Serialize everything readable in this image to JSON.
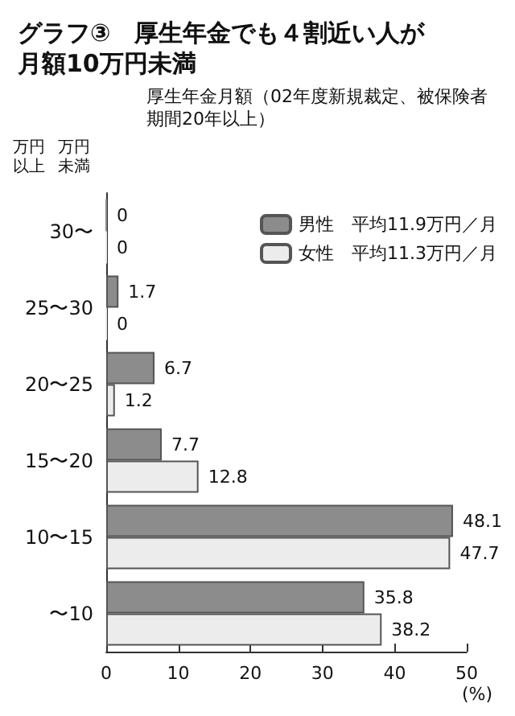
{
  "chart_data": {
    "type": "bar",
    "orientation": "horizontal",
    "title": "グラフ③　厚生年金でも４割近い人が月額10万円未満",
    "subtitle": "厚生年金月額（02年度新規裁定、被保険者期間20年以上）",
    "annotations": [
      "万円以上",
      "万円未満"
    ],
    "xlabel": "(%)",
    "categories": [
      "30〜",
      "25〜30",
      "20〜25",
      "15〜20",
      "10〜15",
      "〜10"
    ],
    "series": [
      {
        "name": "男性　平均11.9万円／月",
        "color": "#8c8c8c",
        "values": [
          0,
          1.7,
          6.7,
          7.7,
          48.1,
          35.8
        ]
      },
      {
        "name": "女性　平均11.3万円／月",
        "color": "#ececec",
        "values": [
          0,
          0,
          1.2,
          12.8,
          47.7,
          38.2
        ]
      }
    ],
    "xlim": [
      0,
      50
    ],
    "xticks": [
      0,
      10,
      20,
      30,
      40,
      50
    ],
    "data_labels": true,
    "grid": false,
    "legend": "top right"
  }
}
